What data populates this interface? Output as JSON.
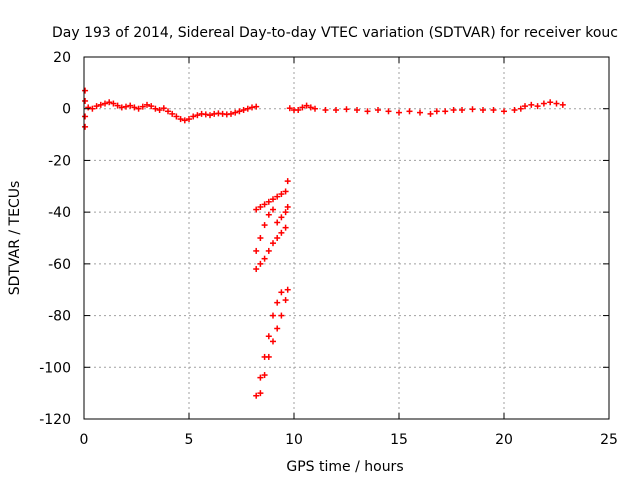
{
  "chart_data": {
    "type": "scatter",
    "title": "Day 193 of 2014, Sidereal Day-to-day VTEC variation (SDTVAR) for receiver kouc",
    "xlabel": "GPS time / hours",
    "ylabel": "SDTVAR / TECUs",
    "xlim": [
      0,
      25
    ],
    "ylim": [
      -120,
      20
    ],
    "x_ticks": [
      0,
      5,
      10,
      15,
      20,
      25
    ],
    "y_ticks": [
      20,
      0,
      -20,
      -40,
      -60,
      -80,
      -100,
      -120
    ],
    "grid": true,
    "legend": "none",
    "marker_color": "#ff0000",
    "marker": "plus",
    "series": [
      {
        "description_visible": false,
        "points": [
          [
            0.05,
            7
          ],
          [
            0.05,
            3
          ],
          [
            0.05,
            -3
          ],
          [
            0.05,
            -7
          ],
          [
            0.2,
            0.5
          ],
          [
            0.4,
            0.0
          ],
          [
            0.6,
            1.0
          ],
          [
            0.8,
            1.5
          ],
          [
            1.0,
            2.0
          ],
          [
            1.2,
            2.5
          ],
          [
            1.4,
            2.0
          ],
          [
            1.6,
            1.2
          ],
          [
            1.8,
            0.5
          ],
          [
            2.0,
            0.8
          ],
          [
            2.2,
            1.2
          ],
          [
            2.4,
            0.5
          ],
          [
            2.6,
            0.0
          ],
          [
            2.8,
            0.8
          ],
          [
            3.0,
            1.5
          ],
          [
            3.2,
            1.0
          ],
          [
            3.4,
            0.0
          ],
          [
            3.6,
            -0.5
          ],
          [
            3.8,
            0.2
          ],
          [
            4.0,
            -1.0
          ],
          [
            4.2,
            -2.0
          ],
          [
            4.4,
            -3.0
          ],
          [
            4.6,
            -4.0
          ],
          [
            4.8,
            -4.5
          ],
          [
            5.0,
            -4.0
          ],
          [
            5.2,
            -3.0
          ],
          [
            5.4,
            -2.5
          ],
          [
            5.6,
            -2.0
          ],
          [
            5.8,
            -2.2
          ],
          [
            6.0,
            -2.5
          ],
          [
            6.2,
            -2.0
          ],
          [
            6.4,
            -1.8
          ],
          [
            6.6,
            -2.0
          ],
          [
            6.8,
            -2.2
          ],
          [
            7.0,
            -2.0
          ],
          [
            7.2,
            -1.5
          ],
          [
            7.4,
            -1.0
          ],
          [
            7.6,
            -0.5
          ],
          [
            7.8,
            0.0
          ],
          [
            8.0,
            0.5
          ],
          [
            8.2,
            0.8
          ],
          [
            9.8,
            0.2
          ],
          [
            10.0,
            -0.5
          ],
          [
            10.2,
            -0.5
          ],
          [
            10.4,
            0.5
          ],
          [
            10.6,
            1.2
          ],
          [
            10.8,
            0.5
          ],
          [
            11.0,
            0.0
          ],
          [
            11.5,
            -0.5
          ],
          [
            12.0,
            -0.5
          ],
          [
            12.5,
            -0.2
          ],
          [
            13.0,
            -0.5
          ],
          [
            13.5,
            -1.0
          ],
          [
            14.0,
            -0.5
          ],
          [
            14.5,
            -1.0
          ],
          [
            15.0,
            -1.5
          ],
          [
            15.5,
            -1.0
          ],
          [
            16.0,
            -1.5
          ],
          [
            16.5,
            -2.0
          ],
          [
            16.8,
            -1.0
          ],
          [
            17.2,
            -1.0
          ],
          [
            17.6,
            -0.5
          ],
          [
            18.0,
            -0.5
          ],
          [
            18.5,
            -0.2
          ],
          [
            19.0,
            -0.5
          ],
          [
            19.5,
            -0.5
          ],
          [
            20.0,
            -1.0
          ],
          [
            20.5,
            -0.5
          ],
          [
            20.8,
            0.0
          ],
          [
            21.0,
            1.0
          ],
          [
            21.3,
            1.5
          ],
          [
            21.6,
            1.0
          ],
          [
            21.9,
            2.0
          ],
          [
            22.2,
            2.5
          ],
          [
            22.5,
            2.0
          ],
          [
            22.8,
            1.5
          ],
          [
            8.2,
            -39
          ],
          [
            8.4,
            -38
          ],
          [
            8.6,
            -37
          ],
          [
            8.8,
            -36
          ],
          [
            9.0,
            -35
          ],
          [
            9.2,
            -34
          ],
          [
            9.4,
            -33
          ],
          [
            9.6,
            -32
          ],
          [
            9.7,
            -28
          ],
          [
            8.2,
            -55
          ],
          [
            8.4,
            -50
          ],
          [
            8.6,
            -45
          ],
          [
            8.8,
            -41
          ],
          [
            9.0,
            -39
          ],
          [
            8.2,
            -62
          ],
          [
            8.4,
            -60
          ],
          [
            8.6,
            -58
          ],
          [
            8.8,
            -55
          ],
          [
            9.0,
            -52
          ],
          [
            9.2,
            -50
          ],
          [
            9.4,
            -48
          ],
          [
            9.6,
            -46
          ],
          [
            9.2,
            -44
          ],
          [
            9.4,
            -42
          ],
          [
            9.6,
            -40
          ],
          [
            9.7,
            -38
          ],
          [
            8.2,
            -111
          ],
          [
            8.4,
            -104
          ],
          [
            8.6,
            -96
          ],
          [
            8.8,
            -88
          ],
          [
            9.0,
            -80
          ],
          [
            9.2,
            -75
          ],
          [
            9.4,
            -71
          ],
          [
            8.4,
            -110
          ],
          [
            8.6,
            -103
          ],
          [
            8.8,
            -96
          ],
          [
            9.0,
            -90
          ],
          [
            9.2,
            -85
          ],
          [
            9.4,
            -80
          ],
          [
            9.6,
            -74
          ],
          [
            9.7,
            -70
          ]
        ]
      }
    ]
  }
}
